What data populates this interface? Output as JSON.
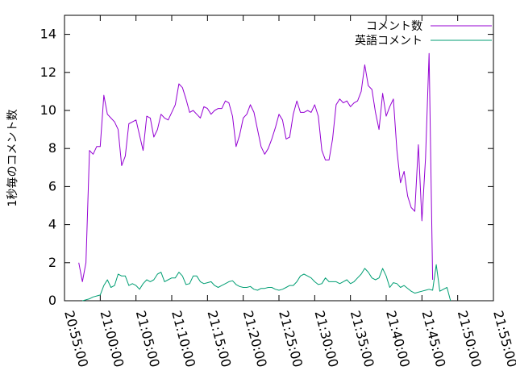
{
  "chart_data": {
    "type": "line",
    "title": "",
    "xlabel": "",
    "ylabel": "1秒毎のコメント数",
    "ylim": [
      0,
      15
    ],
    "yticks": [
      0,
      2,
      4,
      6,
      8,
      10,
      12,
      14
    ],
    "xlim": [
      "20:55:00",
      "21:55:00"
    ],
    "xticks": [
      "20:55:00",
      "21:00:00",
      "21:05:00",
      "21:10:00",
      "21:15:00",
      "21:20:00",
      "21:25:00",
      "21:30:00",
      "21:35:00",
      "21:40:00",
      "21:45:00",
      "21:50:00",
      "21:55:00"
    ],
    "grid": false,
    "legend_position": "top-right",
    "series": [
      {
        "name": "コメント数",
        "color": "#9400D3",
        "points": [
          [
            "20:57:00",
            2.0
          ],
          [
            "20:57:30",
            1.0
          ],
          [
            "20:58:00",
            2.0
          ],
          [
            "20:58:30",
            7.9
          ],
          [
            "20:59:00",
            7.7
          ],
          [
            "20:59:30",
            8.1
          ],
          [
            "21:00:00",
            8.1
          ],
          [
            "21:00:30",
            10.8
          ],
          [
            "21:01:00",
            9.8
          ],
          [
            "21:01:30",
            9.6
          ],
          [
            "21:02:00",
            9.4
          ],
          [
            "21:02:30",
            9.0
          ],
          [
            "21:03:00",
            7.1
          ],
          [
            "21:03:30",
            7.6
          ],
          [
            "21:04:00",
            9.3
          ],
          [
            "21:04:30",
            9.4
          ],
          [
            "21:05:00",
            9.5
          ],
          [
            "21:05:30",
            8.7
          ],
          [
            "21:06:00",
            7.9
          ],
          [
            "21:06:30",
            9.7
          ],
          [
            "21:07:00",
            9.6
          ],
          [
            "21:07:30",
            8.6
          ],
          [
            "21:08:00",
            9.0
          ],
          [
            "21:08:30",
            9.8
          ],
          [
            "21:09:00",
            9.6
          ],
          [
            "21:09:30",
            9.5
          ],
          [
            "21:10:00",
            9.9
          ],
          [
            "21:10:30",
            10.3
          ],
          [
            "21:11:00",
            11.4
          ],
          [
            "21:11:30",
            11.2
          ],
          [
            "21:12:00",
            10.6
          ],
          [
            "21:12:30",
            9.9
          ],
          [
            "21:13:00",
            10.0
          ],
          [
            "21:13:30",
            9.8
          ],
          [
            "21:14:00",
            9.6
          ],
          [
            "21:14:30",
            10.2
          ],
          [
            "21:15:00",
            10.1
          ],
          [
            "21:15:30",
            9.8
          ],
          [
            "21:16:00",
            10.0
          ],
          [
            "21:16:30",
            10.1
          ],
          [
            "21:17:00",
            10.1
          ],
          [
            "21:17:30",
            10.5
          ],
          [
            "21:18:00",
            10.4
          ],
          [
            "21:18:30",
            9.7
          ],
          [
            "21:19:00",
            8.1
          ],
          [
            "21:19:30",
            8.7
          ],
          [
            "21:20:00",
            9.6
          ],
          [
            "21:20:30",
            9.8
          ],
          [
            "21:21:00",
            10.3
          ],
          [
            "21:21:30",
            9.9
          ],
          [
            "21:22:00",
            9.0
          ],
          [
            "21:22:30",
            8.1
          ],
          [
            "21:23:00",
            7.7
          ],
          [
            "21:23:30",
            8.0
          ],
          [
            "21:24:00",
            8.5
          ],
          [
            "21:24:30",
            9.1
          ],
          [
            "21:25:00",
            9.8
          ],
          [
            "21:25:30",
            9.5
          ],
          [
            "21:26:00",
            8.5
          ],
          [
            "21:26:30",
            8.6
          ],
          [
            "21:27:00",
            9.8
          ],
          [
            "21:27:30",
            10.5
          ],
          [
            "21:28:00",
            9.9
          ],
          [
            "21:28:30",
            9.9
          ],
          [
            "21:29:00",
            10.0
          ],
          [
            "21:29:30",
            9.9
          ],
          [
            "21:30:00",
            10.3
          ],
          [
            "21:30:30",
            9.7
          ],
          [
            "21:31:00",
            7.9
          ],
          [
            "21:31:30",
            7.4
          ],
          [
            "21:32:00",
            7.4
          ],
          [
            "21:32:30",
            8.5
          ],
          [
            "21:33:00",
            10.3
          ],
          [
            "21:33:30",
            10.6
          ],
          [
            "21:34:00",
            10.4
          ],
          [
            "21:34:30",
            10.5
          ],
          [
            "21:35:00",
            10.2
          ],
          [
            "21:35:30",
            10.4
          ],
          [
            "21:36:00",
            10.5
          ],
          [
            "21:36:30",
            11.0
          ],
          [
            "21:37:00",
            12.4
          ],
          [
            "21:37:30",
            11.3
          ],
          [
            "21:38:00",
            11.1
          ],
          [
            "21:38:30",
            9.9
          ],
          [
            "21:39:00",
            9.0
          ],
          [
            "21:39:30",
            10.9
          ],
          [
            "21:40:00",
            9.7
          ],
          [
            "21:40:30",
            10.2
          ],
          [
            "21:41:00",
            10.6
          ],
          [
            "21:41:30",
            7.9
          ],
          [
            "21:42:00",
            6.2
          ],
          [
            "21:42:30",
            6.8
          ],
          [
            "21:43:00",
            5.5
          ],
          [
            "21:43:30",
            4.9
          ],
          [
            "21:44:00",
            4.7
          ],
          [
            "21:44:30",
            8.2
          ],
          [
            "21:45:00",
            4.2
          ],
          [
            "21:45:30",
            7.5
          ],
          [
            "21:46:00",
            13.0
          ],
          [
            "21:46:30",
            1.1
          ]
        ]
      },
      {
        "name": "英語コメント",
        "color": "#009E73",
        "points": [
          [
            "20:57:30",
            0.0
          ],
          [
            "20:58:00",
            0.05
          ],
          [
            "20:58:30",
            0.1
          ],
          [
            "20:59:00",
            0.2
          ],
          [
            "20:59:30",
            0.25
          ],
          [
            "21:00:00",
            0.3
          ],
          [
            "21:00:30",
            0.8
          ],
          [
            "21:01:00",
            1.1
          ],
          [
            "21:01:30",
            0.7
          ],
          [
            "21:02:00",
            0.8
          ],
          [
            "21:02:30",
            1.4
          ],
          [
            "21:03:00",
            1.3
          ],
          [
            "21:03:30",
            1.3
          ],
          [
            "21:04:00",
            0.8
          ],
          [
            "21:04:30",
            0.9
          ],
          [
            "21:05:00",
            0.8
          ],
          [
            "21:05:30",
            0.6
          ],
          [
            "21:06:00",
            0.9
          ],
          [
            "21:06:30",
            1.1
          ],
          [
            "21:07:00",
            1.0
          ],
          [
            "21:07:30",
            1.1
          ],
          [
            "21:08:00",
            1.4
          ],
          [
            "21:08:30",
            1.5
          ],
          [
            "21:09:00",
            1.0
          ],
          [
            "21:09:30",
            1.1
          ],
          [
            "21:10:00",
            1.2
          ],
          [
            "21:10:30",
            1.2
          ],
          [
            "21:11:00",
            1.5
          ],
          [
            "21:11:30",
            1.3
          ],
          [
            "21:12:00",
            0.85
          ],
          [
            "21:12:30",
            0.9
          ],
          [
            "21:13:00",
            1.3
          ],
          [
            "21:13:30",
            1.3
          ],
          [
            "21:14:00",
            1.0
          ],
          [
            "21:14:30",
            0.9
          ],
          [
            "21:15:00",
            0.95
          ],
          [
            "21:15:30",
            1.0
          ],
          [
            "21:16:00",
            0.8
          ],
          [
            "21:16:30",
            0.7
          ],
          [
            "21:17:00",
            0.8
          ],
          [
            "21:17:30",
            0.9
          ],
          [
            "21:18:00",
            1.0
          ],
          [
            "21:18:30",
            1.05
          ],
          [
            "21:19:00",
            0.85
          ],
          [
            "21:19:30",
            0.75
          ],
          [
            "21:20:00",
            0.7
          ],
          [
            "21:20:30",
            0.7
          ],
          [
            "21:21:00",
            0.75
          ],
          [
            "21:21:30",
            0.6
          ],
          [
            "21:22:00",
            0.55
          ],
          [
            "21:22:30",
            0.65
          ],
          [
            "21:23:00",
            0.65
          ],
          [
            "21:23:30",
            0.7
          ],
          [
            "21:24:00",
            0.7
          ],
          [
            "21:24:30",
            0.6
          ],
          [
            "21:25:00",
            0.55
          ],
          [
            "21:25:30",
            0.6
          ],
          [
            "21:26:00",
            0.7
          ],
          [
            "21:26:30",
            0.8
          ],
          [
            "21:27:00",
            0.8
          ],
          [
            "21:27:30",
            1.0
          ],
          [
            "21:28:00",
            1.3
          ],
          [
            "21:28:30",
            1.4
          ],
          [
            "21:29:00",
            1.3
          ],
          [
            "21:29:30",
            1.2
          ],
          [
            "21:30:00",
            1.0
          ],
          [
            "21:30:30",
            0.85
          ],
          [
            "21:31:00",
            0.9
          ],
          [
            "21:31:30",
            1.2
          ],
          [
            "21:32:00",
            1.0
          ],
          [
            "21:32:30",
            1.0
          ],
          [
            "21:33:00",
            1.0
          ],
          [
            "21:33:30",
            0.9
          ],
          [
            "21:34:00",
            1.0
          ],
          [
            "21:34:30",
            1.1
          ],
          [
            "21:35:00",
            0.9
          ],
          [
            "21:35:30",
            1.0
          ],
          [
            "21:36:00",
            1.2
          ],
          [
            "21:36:30",
            1.4
          ],
          [
            "21:37:00",
            1.7
          ],
          [
            "21:37:30",
            1.5
          ],
          [
            "21:38:00",
            1.2
          ],
          [
            "21:38:30",
            1.1
          ],
          [
            "21:39:00",
            1.2
          ],
          [
            "21:39:30",
            1.7
          ],
          [
            "21:40:00",
            1.3
          ],
          [
            "21:40:30",
            0.7
          ],
          [
            "21:41:00",
            0.95
          ],
          [
            "21:41:30",
            0.9
          ],
          [
            "21:42:00",
            0.7
          ],
          [
            "21:42:30",
            0.8
          ],
          [
            "21:43:00",
            0.65
          ],
          [
            "21:43:30",
            0.5
          ],
          [
            "21:44:00",
            0.4
          ],
          [
            "21:44:30",
            0.45
          ],
          [
            "21:45:00",
            0.5
          ],
          [
            "21:45:30",
            0.55
          ],
          [
            "21:46:00",
            0.6
          ],
          [
            "21:46:30",
            0.55
          ],
          [
            "21:47:00",
            1.9
          ],
          [
            "21:47:30",
            0.5
          ],
          [
            "21:48:00",
            0.6
          ],
          [
            "21:48:30",
            0.7
          ],
          [
            "21:49:00",
            0.0
          ]
        ]
      }
    ]
  }
}
